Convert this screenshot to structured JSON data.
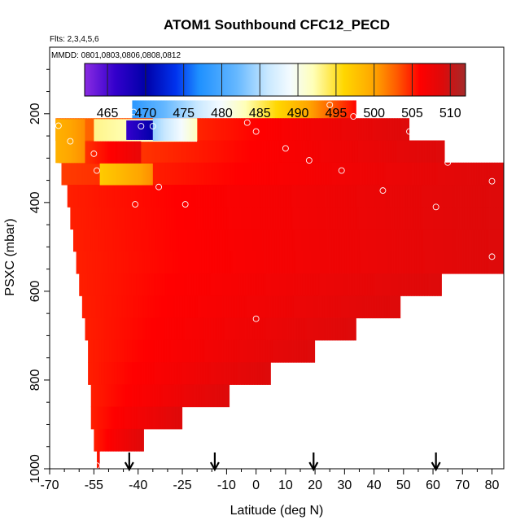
{
  "chart_data": {
    "type": "heatmap",
    "title": "ATOM1 Southbound CFC12_PECD",
    "notes": {
      "flights": "Flts: 2,3,4,5,6",
      "dates": "MMDD: 0801,0803,0806,0808,0812"
    },
    "xlabel": "Latitude (deg N)",
    "ylabel": "PSXC (mbar)",
    "xlim": [
      -70,
      84
    ],
    "ylim": [
      1000,
      50
    ],
    "x_ticks": [
      -70,
      -55,
      -40,
      -25,
      -10,
      0,
      10,
      20,
      30,
      40,
      50,
      60,
      70,
      80
    ],
    "y_ticks": [
      200,
      400,
      600,
      800,
      1000
    ],
    "colorbar": {
      "ticks": [
        465,
        470,
        475,
        480,
        485,
        490,
        495,
        500,
        505,
        510
      ],
      "range": [
        462,
        512
      ],
      "stops": [
        {
          "v": 462,
          "c": "#8a2be2"
        },
        {
          "v": 466,
          "c": "#3300cc"
        },
        {
          "v": 470,
          "c": "#0000a8"
        },
        {
          "v": 474,
          "c": "#0033ee"
        },
        {
          "v": 477,
          "c": "#1e90ff"
        },
        {
          "v": 482,
          "c": "#66b8ff"
        },
        {
          "v": 486,
          "c": "#c8e8ff"
        },
        {
          "v": 489,
          "c": "#f4fbff"
        },
        {
          "v": 492,
          "c": "#ffffb8"
        },
        {
          "v": 496,
          "c": "#ffd700"
        },
        {
          "v": 500,
          "c": "#ffa500"
        },
        {
          "v": 503,
          "c": "#ff5a00"
        },
        {
          "v": 506,
          "c": "#ff0000"
        },
        {
          "v": 509,
          "c": "#dd0a0a"
        },
        {
          "v": 512,
          "c": "#a52a2a"
        }
      ]
    },
    "bands": [
      {
        "p_top": 170,
        "p_bot": 210,
        "x_start": -42,
        "x_end": 34,
        "v_start": 478,
        "v_end": 506
      },
      {
        "p_top": 210,
        "p_bot": 260,
        "x_start": -68,
        "x_end": 52,
        "v_start": 502,
        "v_end": 509
      },
      {
        "p_top": 260,
        "p_bot": 310,
        "x_start": -67,
        "x_end": 64,
        "v_start": 503,
        "v_end": 509
      },
      {
        "p_top": 310,
        "p_bot": 360,
        "x_start": -66,
        "x_end": 84,
        "v_start": 504,
        "v_end": 509
      },
      {
        "p_top": 360,
        "p_bot": 410,
        "x_start": -64,
        "x_end": 84,
        "v_start": 505,
        "v_end": 509
      },
      {
        "p_top": 410,
        "p_bot": 460,
        "x_start": -63,
        "x_end": 84,
        "v_start": 505,
        "v_end": 509
      },
      {
        "p_top": 460,
        "p_bot": 510,
        "x_start": -62,
        "x_end": 84,
        "v_start": 505,
        "v_end": 509
      },
      {
        "p_top": 510,
        "p_bot": 560,
        "x_start": -61,
        "x_end": 84,
        "v_start": 505,
        "v_end": 509
      },
      {
        "p_top": 560,
        "p_bot": 610,
        "x_start": -60,
        "x_end": 63,
        "v_start": 505,
        "v_end": 509
      },
      {
        "p_top": 610,
        "p_bot": 660,
        "x_start": -59,
        "x_end": 49,
        "v_start": 505,
        "v_end": 509
      },
      {
        "p_top": 660,
        "p_bot": 710,
        "x_start": -58,
        "x_end": 34,
        "v_start": 505,
        "v_end": 509
      },
      {
        "p_top": 710,
        "p_bot": 760,
        "x_start": -57,
        "x_end": 20,
        "v_start": 505,
        "v_end": 509
      },
      {
        "p_top": 760,
        "p_bot": 810,
        "x_start": -57,
        "x_end": 5,
        "v_start": 505,
        "v_end": 509
      },
      {
        "p_top": 810,
        "p_bot": 860,
        "x_start": -56,
        "x_end": -9,
        "v_start": 505,
        "v_end": 509
      },
      {
        "p_top": 860,
        "p_bot": 910,
        "x_start": -56,
        "x_end": -25,
        "v_start": 505,
        "v_end": 509
      },
      {
        "p_top": 910,
        "p_bot": 960,
        "x_start": -55,
        "x_end": -38,
        "v_start": 505,
        "v_end": 509
      },
      {
        "p_top": 960,
        "p_bot": 1000,
        "x_start": -54,
        "x_end": -53,
        "v_start": 505,
        "v_end": 509
      }
    ],
    "patches": [
      {
        "p_top": 212,
        "p_bot": 262,
        "x_start": -55,
        "x_end": -20,
        "v_start": 493,
        "v_end": 490
      },
      {
        "p_top": 215,
        "p_bot": 258,
        "x_start": -44,
        "x_end": -35,
        "v_start": 466,
        "v_end": 470
      },
      {
        "p_top": 210,
        "p_bot": 260,
        "x_start": -35,
        "x_end": -20,
        "v_start": 484,
        "v_end": 492
      },
      {
        "p_top": 262,
        "p_bot": 312,
        "x_start": -60,
        "x_end": -39,
        "v_start": 504,
        "v_end": 508
      },
      {
        "p_top": 312,
        "p_bot": 360,
        "x_start": -53,
        "x_end": -35,
        "v_start": 497,
        "v_end": 501
      },
      {
        "p_top": 212,
        "p_bot": 310,
        "x_start": -68,
        "x_end": -58,
        "v_start": 499,
        "v_end": 501
      }
    ],
    "observation_points": [
      {
        "lat": -67,
        "p": 227
      },
      {
        "lat": -63,
        "p": 262
      },
      {
        "lat": -55,
        "p": 290
      },
      {
        "lat": -54,
        "p": 328
      },
      {
        "lat": -41.5,
        "p": 196
      },
      {
        "lat": -39,
        "p": 228
      },
      {
        "lat": -35,
        "p": 228
      },
      {
        "lat": -33,
        "p": 365
      },
      {
        "lat": -41,
        "p": 404
      },
      {
        "lat": -24,
        "p": 404
      },
      {
        "lat": -3,
        "p": 220
      },
      {
        "lat": 0,
        "p": 240
      },
      {
        "lat": 10,
        "p": 278
      },
      {
        "lat": 18,
        "p": 305
      },
      {
        "lat": 25,
        "p": 180
      },
      {
        "lat": 29,
        "p": 328
      },
      {
        "lat": 33,
        "p": 206
      },
      {
        "lat": 43,
        "p": 373
      },
      {
        "lat": 52,
        "p": 240
      },
      {
        "lat": 61,
        "p": 410
      },
      {
        "lat": 65,
        "p": 310
      },
      {
        "lat": 80,
        "p": 352
      },
      {
        "lat": 80,
        "p": 522
      },
      {
        "lat": 0,
        "p": 662
      },
      {
        "lat": -54,
        "p": 993
      }
    ],
    "marker_latitudes": [
      -43,
      -14,
      19.5,
      61
    ]
  }
}
